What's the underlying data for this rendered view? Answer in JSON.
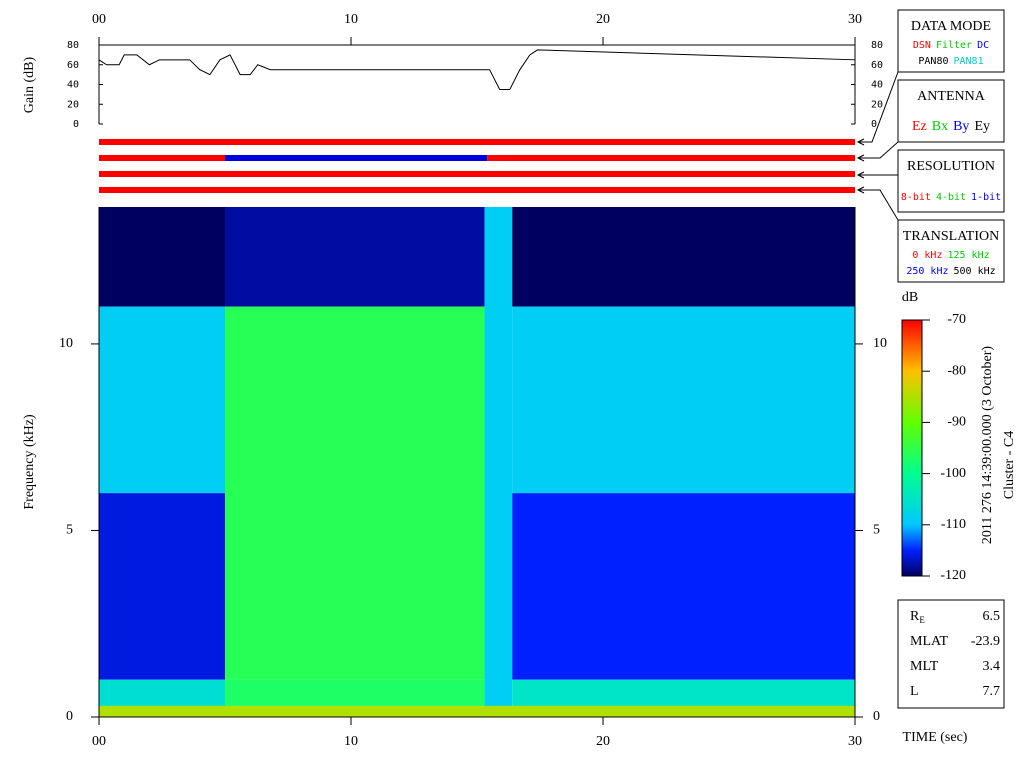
{
  "chart_data": [
    {
      "type": "line",
      "ylabel": "Gain (dB)",
      "x": [
        0,
        0.3,
        0.8,
        1.0,
        1.5,
        2.0,
        2.4,
        2.8,
        3.2,
        3.6,
        4.0,
        4.4,
        4.8,
        5.2,
        5.6,
        6.0,
        6.3,
        6.8,
        15.5,
        15.9,
        16.3,
        16.7,
        17.1,
        17.4,
        30
      ],
      "values": [
        65,
        60,
        60,
        70,
        70,
        60,
        65,
        65,
        65,
        65,
        55,
        50,
        65,
        70,
        50,
        50,
        60,
        55,
        55,
        35,
        35,
        55,
        70,
        75,
        65
      ],
      "color": "#000000",
      "xlim": [
        0,
        30
      ],
      "ylim": [
        0,
        80
      ],
      "xticks": [
        {
          "value": 0,
          "label": "00"
        },
        10,
        20,
        30
      ],
      "yticks": [
        0,
        20,
        40,
        60,
        80
      ]
    },
    {
      "type": "timeline",
      "xlim": [
        0,
        30
      ],
      "bars": [
        {
          "segments": [
            {
              "start": 0,
              "end": 30,
              "color": "#ff0000"
            }
          ]
        },
        {
          "segments": [
            {
              "start": 0,
              "end": 5,
              "color": "#ff0000"
            },
            {
              "start": 5,
              "end": 15.4,
              "color": "#0000dd"
            },
            {
              "start": 15.4,
              "end": 30,
              "color": "#ff0000"
            }
          ]
        },
        {
          "segments": [
            {
              "start": 0,
              "end": 30,
              "color": "#ff0000"
            }
          ]
        },
        {
          "segments": [
            {
              "start": 0,
              "end": 30,
              "color": "#ff0000"
            }
          ]
        }
      ]
    },
    {
      "type": "heatmap",
      "ylabel": "Frequency (kHz)",
      "xlabel": "TIME (sec)",
      "xlim": [
        0,
        30
      ],
      "ylim": [
        0,
        13.67
      ],
      "xticks": [
        {
          "value": 0,
          "label": "00"
        },
        10,
        20,
        30
      ],
      "yticks": [
        0,
        5,
        10
      ],
      "regions": [
        {
          "t0": 0,
          "t1": 5,
          "f0": 11,
          "f1": 13.67,
          "db": -120
        },
        {
          "t0": 0,
          "t1": 5,
          "f0": 6,
          "f1": 11,
          "db": -109
        },
        {
          "t0": 0,
          "t1": 5,
          "f0": 1,
          "f1": 6,
          "db": -116
        },
        {
          "t0": 0,
          "t1": 5,
          "f0": 0,
          "f1": 1,
          "db": -106
        },
        {
          "t0": 5,
          "t1": 15.3,
          "f0": 11,
          "f1": 13.67,
          "db": -118
        },
        {
          "t0": 5,
          "t1": 15.3,
          "f0": 1,
          "f1": 11,
          "db": -96
        },
        {
          "t0": 5,
          "t1": 15.3,
          "f0": 0,
          "f1": 1,
          "db": -97
        },
        {
          "t0": 15.3,
          "t1": 16.4,
          "f0": 0,
          "f1": 13.67,
          "db": -109
        },
        {
          "t0": 16.4,
          "t1": 30,
          "f0": 11,
          "f1": 13.67,
          "db": -120
        },
        {
          "t0": 16.4,
          "t1": 30,
          "f0": 6,
          "f1": 11,
          "db": -109
        },
        {
          "t0": 16.4,
          "t1": 30,
          "f0": 1,
          "f1": 6,
          "db": -115
        },
        {
          "t0": 16.4,
          "t1": 30,
          "f0": 0,
          "f1": 1,
          "db": -105
        },
        {
          "t0": 0,
          "t1": 30,
          "f0": 0,
          "f1": 0.3,
          "db": -85
        }
      ],
      "colorbar": {
        "label": "dB",
        "lim": [
          -120,
          -70
        ],
        "ticks": [
          -70,
          -80,
          -90,
          -100,
          -110,
          -120
        ],
        "colormap": [
          {
            "value": -120,
            "color": "#000060"
          },
          {
            "value": -115,
            "color": "#0020ff"
          },
          {
            "value": -110,
            "color": "#00c8ff"
          },
          {
            "value": -100,
            "color": "#00ff90"
          },
          {
            "value": -90,
            "color": "#60ff00"
          },
          {
            "value": -80,
            "color": "#ffc000"
          },
          {
            "value": -70,
            "color": "#ff0000"
          }
        ]
      }
    }
  ],
  "timestamp": "2011 276 14:39:00.000 (3 October)",
  "spacecraft": "Cluster - C4",
  "panels": [
    {
      "title": "DATA MODE",
      "rows": [
        [
          {
            "text": "DSN",
            "color": "#ff0000"
          },
          {
            "text": "Filter",
            "color": "#00cc00"
          },
          {
            "text": "DC",
            "color": "#0000ff"
          }
        ],
        [
          {
            "text": "PAN80",
            "color": "#000000"
          },
          {
            "text": "PAN81",
            "color": "#00cccc"
          }
        ]
      ]
    },
    {
      "title": "ANTENNA",
      "rows": [
        [
          {
            "text": "Ez",
            "color": "#ff0000"
          },
          {
            "text": "Bx",
            "color": "#00cc00"
          },
          {
            "text": "By",
            "color": "#0000ff"
          },
          {
            "text": "Ey",
            "color": "#000000"
          }
        ]
      ]
    },
    {
      "title": "RESOLUTION",
      "rows": [
        [
          {
            "text": "8-bit",
            "color": "#ff0000"
          },
          {
            "text": "4-bit",
            "color": "#00cc00"
          },
          {
            "text": "1-bit",
            "color": "#0000ff"
          }
        ]
      ]
    },
    {
      "title": "TRANSLATION",
      "rows": [
        [
          {
            "text": "0 kHz",
            "color": "#ff0000"
          },
          {
            "text": "125 kHz",
            "color": "#00cc00"
          }
        ],
        [
          {
            "text": "250 kHz",
            "color": "#0000ff"
          },
          {
            "text": "500 kHz",
            "color": "#000000"
          }
        ]
      ]
    }
  ],
  "info": [
    {
      "label": "R",
      "sub": "E",
      "value": 6.5
    },
    {
      "label": "MLAT",
      "value": -23.9
    },
    {
      "label": "MLT",
      "value": 3.4
    },
    {
      "label": "L",
      "value": 7.7
    }
  ]
}
